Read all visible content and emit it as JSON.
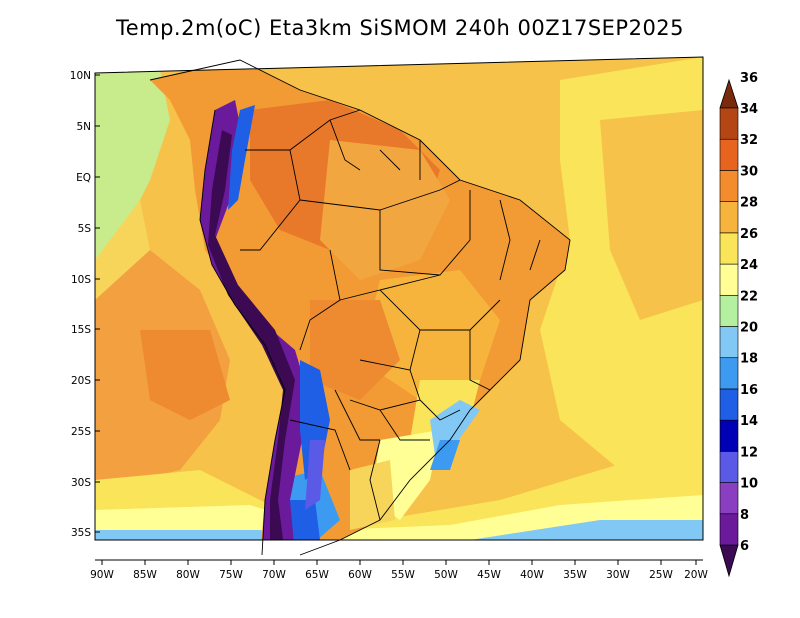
{
  "title": "Temp.2m(oC) Eta3km SiSMOM 240h 00Z17SEP2025",
  "lat_labels": [
    "10N",
    "5N",
    "EQ",
    "5S",
    "10S",
    "15S",
    "20S",
    "25S",
    "30S",
    "35S"
  ],
  "lon_labels": [
    "90W",
    "85W",
    "80W",
    "75W",
    "70W",
    "65W",
    "60W",
    "55W",
    "50W",
    "45W",
    "40W",
    "35W",
    "30W",
    "25W",
    "20W"
  ],
  "colorbar": {
    "labels": [
      "6",
      "8",
      "10",
      "12",
      "14",
      "16",
      "18",
      "20",
      "22",
      "24",
      "26",
      "28",
      "30",
      "32",
      "34",
      "36"
    ],
    "colors": [
      "#3b0a52",
      "#6a1a9a",
      "#8a3fc0",
      "#5a5ae6",
      "#0000b4",
      "#1e5fe6",
      "#3c9bf0",
      "#82c8f5",
      "#b4f0a0",
      "#ffff96",
      "#fae45a",
      "#f6b43c",
      "#f28c2c",
      "#e6641e",
      "#b44614",
      "#7a2a0c"
    ]
  },
  "legend_colors": {
    "land_hot": "#f6b43c",
    "ocean_warm": "#fae45a",
    "cold_andes": "#3b0a52"
  }
}
